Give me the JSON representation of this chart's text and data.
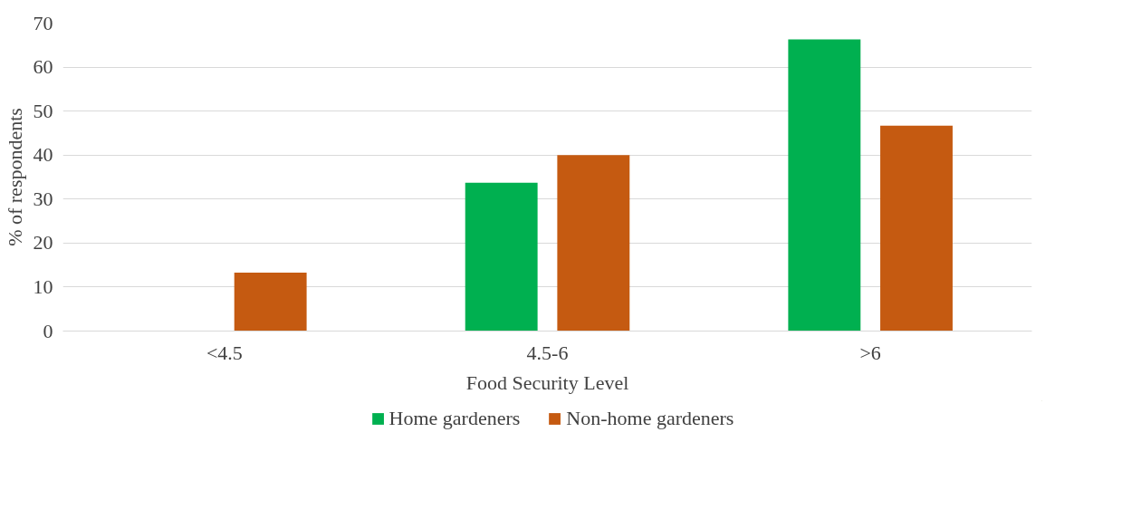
{
  "chart_data": {
    "type": "bar",
    "xlabel": "Food Security Level",
    "ylabel": "% of respondents",
    "categories": [
      "<4.5",
      "4.5-6",
      ">6"
    ],
    "series": [
      {
        "name": "Home gardeners",
        "color": "#00b050",
        "values": [
          0,
          33.7,
          66.3
        ]
      },
      {
        "name": "Non-home gardeners",
        "color": "#c55a11",
        "values": [
          13.3,
          40,
          46.7
        ]
      }
    ],
    "ylim": [
      0,
      70
    ],
    "yticks": [
      0,
      10,
      20,
      30,
      40,
      50,
      60,
      70
    ],
    "grid": "y",
    "legend": "bottom"
  }
}
